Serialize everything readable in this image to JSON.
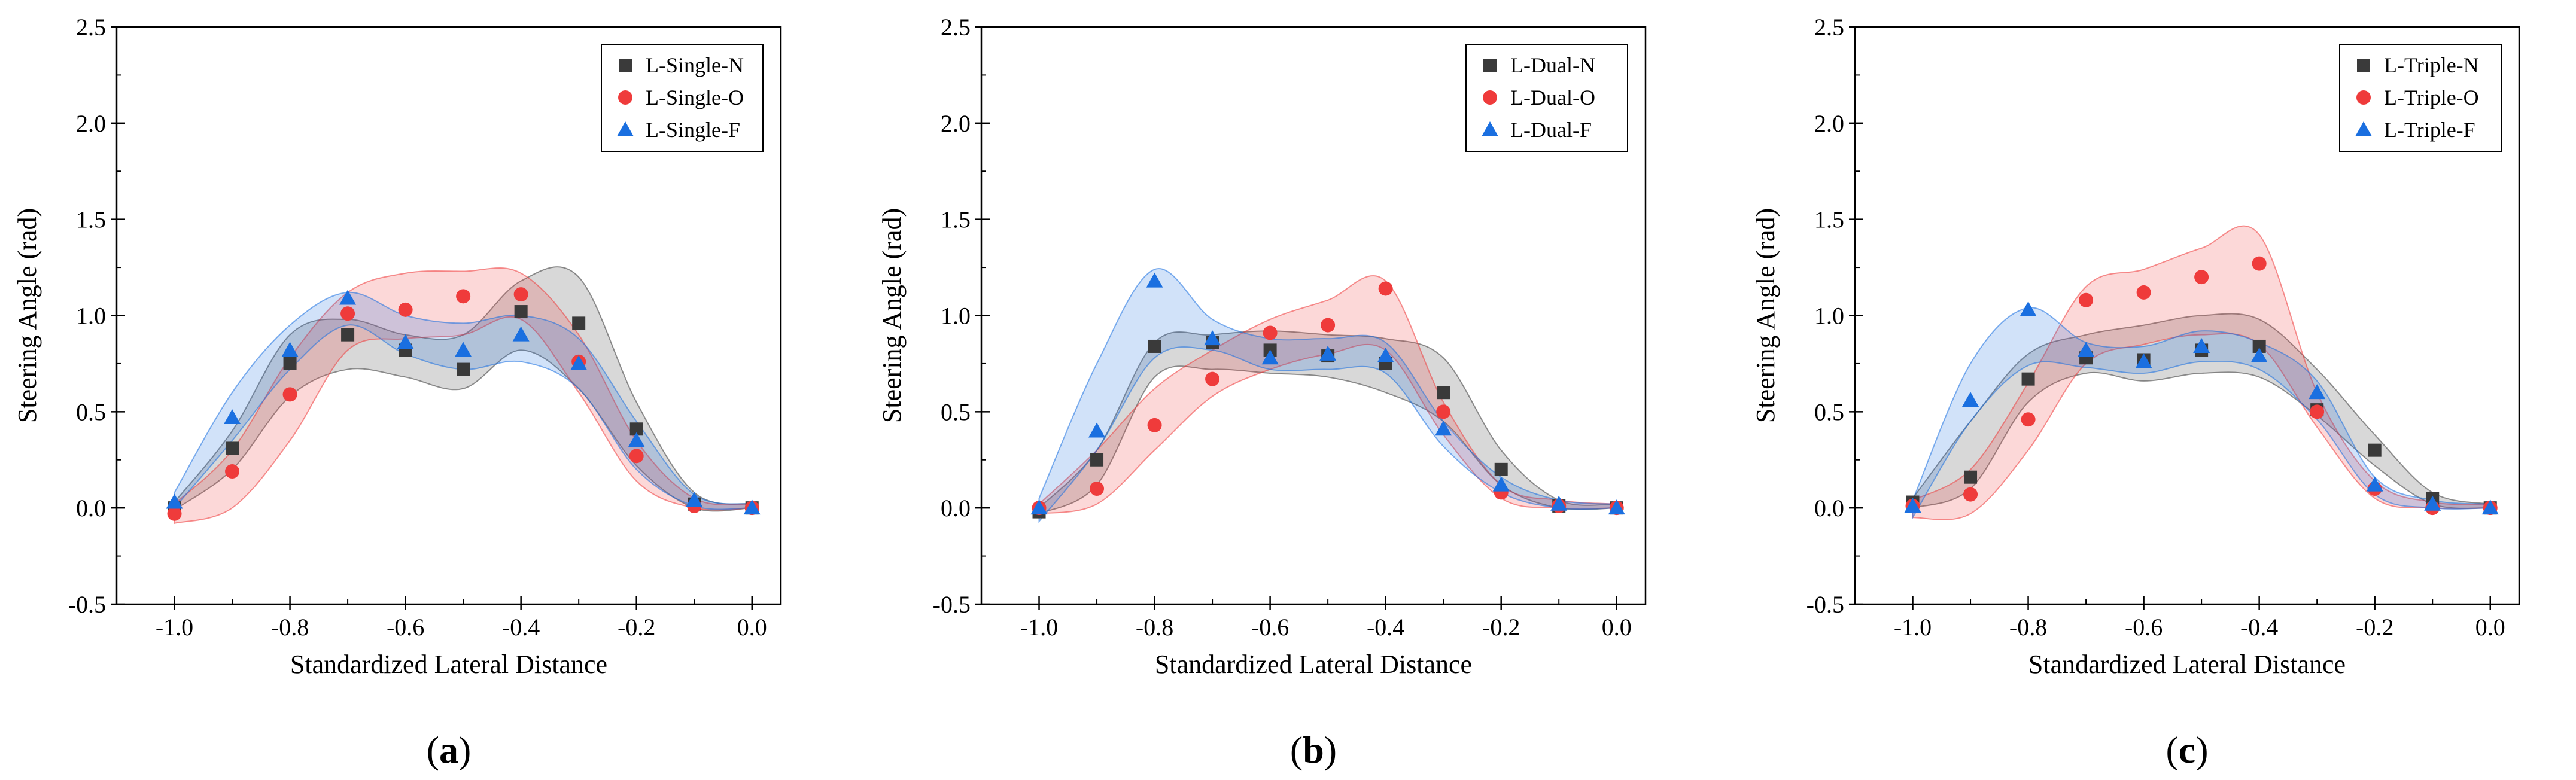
{
  "colors": {
    "N": "#3a3a3a",
    "O": "#ef3b3b",
    "F": "#1a6fe0"
  },
  "chart_data": [
    {
      "type": "scatter",
      "panel_label": "a",
      "xlabel": "Standardized Lateral Distance",
      "ylabel": "Steering Angle (rad)",
      "xlim": [
        -1.1,
        0.05
      ],
      "ylim": [
        -0.5,
        2.5
      ],
      "xticks": [
        "-1.0",
        "-0.8",
        "-0.6",
        "-0.4",
        "-0.2",
        "0.0"
      ],
      "yticks": [
        "-0.5",
        "0.0",
        "0.5",
        "1.0",
        "1.5",
        "2.0",
        "2.5"
      ],
      "x": [
        -1.0,
        -0.9,
        -0.8,
        -0.7,
        -0.6,
        -0.5,
        -0.4,
        -0.3,
        -0.2,
        -0.1,
        0.0
      ],
      "series": [
        {
          "name": "L-Single-N",
          "marker": "square",
          "values": [
            0.0,
            0.31,
            0.75,
            0.9,
            0.82,
            0.72,
            1.02,
            0.96,
            0.41,
            0.02,
            0.0
          ],
          "band_lower": [
            -0.01,
            0.2,
            0.58,
            0.72,
            0.68,
            0.62,
            0.82,
            0.62,
            0.22,
            0.0,
            0.0
          ],
          "band_upper": [
            0.03,
            0.4,
            0.9,
            0.98,
            0.9,
            0.9,
            1.18,
            1.2,
            0.55,
            0.08,
            0.02
          ]
        },
        {
          "name": "L-Single-O",
          "marker": "circle",
          "values": [
            -0.03,
            0.19,
            0.59,
            1.01,
            1.03,
            1.1,
            1.11,
            0.76,
            0.27,
            0.01,
            0.0
          ],
          "band_lower": [
            -0.08,
            0.0,
            0.35,
            0.82,
            0.88,
            0.9,
            0.98,
            0.6,
            0.14,
            0.0,
            0.0
          ],
          "band_upper": [
            0.02,
            0.3,
            0.78,
            1.12,
            1.22,
            1.23,
            1.22,
            0.9,
            0.35,
            0.05,
            0.02
          ]
        },
        {
          "name": "L-Single-F",
          "marker": "triangle",
          "values": [
            0.03,
            0.47,
            0.82,
            1.09,
            0.86,
            0.82,
            0.9,
            0.75,
            0.35,
            0.04,
            0.0
          ],
          "band_lower": [
            0.0,
            0.35,
            0.72,
            0.95,
            0.8,
            0.72,
            0.76,
            0.62,
            0.2,
            0.01,
            0.0
          ],
          "band_upper": [
            0.08,
            0.6,
            0.95,
            1.12,
            1.0,
            0.96,
            1.0,
            0.88,
            0.45,
            0.07,
            0.02
          ]
        }
      ],
      "legend": {
        "position": "top-right",
        "entries": [
          "L-Single-N",
          "L-Single-O",
          "L-Single-F"
        ]
      }
    },
    {
      "type": "scatter",
      "panel_label": "b",
      "xlabel": "Standardized Lateral Distance",
      "ylabel": "Steering Angle (rad)",
      "xlim": [
        -1.1,
        0.05
      ],
      "ylim": [
        -0.5,
        2.5
      ],
      "xticks": [
        "-1.0",
        "-0.8",
        "-0.6",
        "-0.4",
        "-0.2",
        "0.0"
      ],
      "yticks": [
        "-0.5",
        "0.0",
        "0.5",
        "1.0",
        "1.5",
        "2.0",
        "2.5"
      ],
      "x": [
        -1.0,
        -0.9,
        -0.8,
        -0.7,
        -0.6,
        -0.5,
        -0.4,
        -0.3,
        -0.2,
        -0.1,
        0.0
      ],
      "series": [
        {
          "name": "L-Dual-N",
          "marker": "square",
          "values": [
            -0.02,
            0.25,
            0.84,
            0.86,
            0.82,
            0.79,
            0.75,
            0.6,
            0.2,
            0.01,
            0.0
          ],
          "band_lower": [
            -0.03,
            0.12,
            0.68,
            0.72,
            0.7,
            0.68,
            0.6,
            0.45,
            0.12,
            0.0,
            0.0
          ],
          "band_upper": [
            0.0,
            0.3,
            0.86,
            0.9,
            0.92,
            0.9,
            0.88,
            0.78,
            0.3,
            0.04,
            0.02
          ]
        },
        {
          "name": "L-Dual-O",
          "marker": "circle",
          "values": [
            0.0,
            0.1,
            0.43,
            0.67,
            0.91,
            0.95,
            1.14,
            0.5,
            0.08,
            0.01,
            0.0
          ],
          "band_lower": [
            -0.03,
            0.02,
            0.3,
            0.58,
            0.72,
            0.8,
            0.82,
            0.38,
            0.05,
            0.0,
            0.0
          ],
          "band_upper": [
            0.02,
            0.3,
            0.62,
            0.82,
            0.98,
            1.08,
            1.18,
            0.55,
            0.12,
            0.04,
            0.02
          ]
        },
        {
          "name": "L-Dual-F",
          "marker": "triangle",
          "values": [
            0.0,
            0.4,
            1.18,
            0.88,
            0.78,
            0.8,
            0.79,
            0.41,
            0.12,
            0.02,
            0.0
          ],
          "band_lower": [
            -0.07,
            0.3,
            0.78,
            0.82,
            0.72,
            0.72,
            0.7,
            0.32,
            0.08,
            0.0,
            0.0
          ],
          "band_upper": [
            0.05,
            0.75,
            1.24,
            0.98,
            0.88,
            0.88,
            0.86,
            0.45,
            0.16,
            0.04,
            0.02
          ]
        }
      ],
      "legend": {
        "position": "top-right",
        "entries": [
          "L-Dual-N",
          "L-Dual-O",
          "L-Dual-F"
        ]
      }
    },
    {
      "type": "scatter",
      "panel_label": "c",
      "xlabel": "Standardized Lateral Distance",
      "ylabel": "Steering Angle (rad)",
      "xlim": [
        -1.1,
        0.05
      ],
      "ylim": [
        -0.5,
        2.5
      ],
      "xticks": [
        "-1.0",
        "-0.8",
        "-0.6",
        "-0.4",
        "-0.2",
        "0.0"
      ],
      "yticks": [
        "-0.5",
        "0.0",
        "0.5",
        "1.0",
        "1.5",
        "2.0",
        "2.5"
      ],
      "x": [
        -1.0,
        -0.9,
        -0.8,
        -0.7,
        -0.6,
        -0.5,
        -0.4,
        -0.3,
        -0.2,
        -0.1,
        0.0
      ],
      "series": [
        {
          "name": "L-Triple-N",
          "marker": "square",
          "values": [
            0.03,
            0.16,
            0.67,
            0.78,
            0.77,
            0.82,
            0.84,
            0.51,
            0.3,
            0.05,
            0.0
          ],
          "band_lower": [
            0.0,
            0.1,
            0.55,
            0.7,
            0.66,
            0.7,
            0.68,
            0.48,
            0.22,
            0.02,
            0.0
          ],
          "band_upper": [
            0.05,
            0.45,
            0.8,
            0.9,
            0.95,
            1.0,
            0.98,
            0.72,
            0.38,
            0.08,
            0.02
          ]
        },
        {
          "name": "L-Triple-O",
          "marker": "circle",
          "values": [
            0.01,
            0.07,
            0.46,
            1.08,
            1.12,
            1.2,
            1.27,
            0.5,
            0.1,
            0.0,
            0.0
          ],
          "band_lower": [
            -0.05,
            -0.03,
            0.3,
            0.75,
            0.85,
            0.9,
            0.85,
            0.42,
            0.05,
            0.0,
            0.0
          ],
          "band_upper": [
            0.04,
            0.2,
            0.65,
            1.15,
            1.24,
            1.35,
            1.42,
            0.6,
            0.14,
            0.03,
            0.02
          ]
        },
        {
          "name": "L-Triple-F",
          "marker": "triangle",
          "values": [
            0.01,
            0.56,
            1.03,
            0.82,
            0.76,
            0.84,
            0.79,
            0.6,
            0.12,
            0.02,
            0.0
          ],
          "band_lower": [
            -0.05,
            0.45,
            0.74,
            0.73,
            0.7,
            0.76,
            0.72,
            0.46,
            0.07,
            0.0,
            0.0
          ],
          "band_upper": [
            0.04,
            0.75,
            1.04,
            0.86,
            0.84,
            0.92,
            0.86,
            0.66,
            0.16,
            0.04,
            0.02
          ]
        }
      ],
      "legend": {
        "position": "top-right",
        "entries": [
          "L-Triple-N",
          "L-Triple-O",
          "L-Triple-F"
        ]
      }
    }
  ]
}
